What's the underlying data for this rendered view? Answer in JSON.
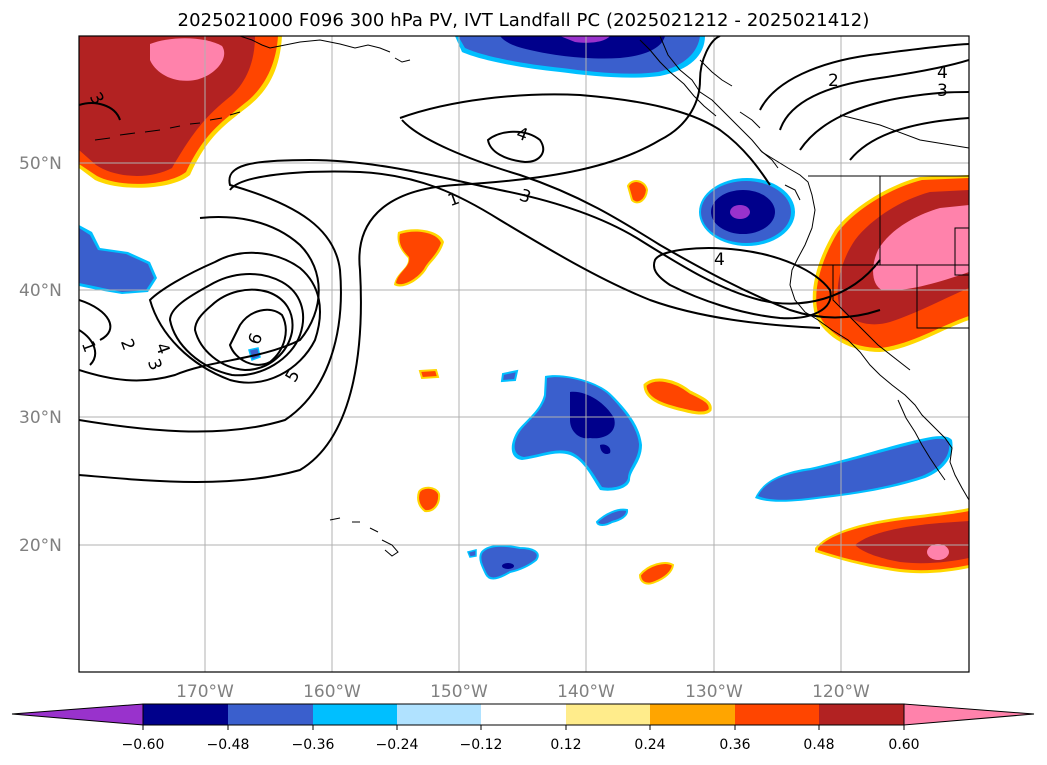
{
  "title": "2025021000 F096 300 hPa PV, IVT Landfall PC (2025021212 - 2025021412)",
  "lat_labels": [
    "50°N",
    "40°N",
    "30°N",
    "20°N"
  ],
  "lon_labels": [
    "170°W",
    "160°W",
    "150°W",
    "140°W",
    "130°W",
    "120°W"
  ],
  "colorbar": {
    "ticks": [
      "−0.60",
      "−0.48",
      "−0.36",
      "−0.24",
      "−0.12",
      "0.12",
      "0.24",
      "0.36",
      "0.48",
      "0.60"
    ],
    "colors": [
      "#9932cc",
      "#00008b",
      "#3a5fcd",
      "#00bfff",
      "#b0e2ff",
      "#ffffff",
      "#ffec8b",
      "#ffa500",
      "#ff4500",
      "#b22222",
      "#ff82ab"
    ]
  },
  "contour_labels": {
    "c1": "1",
    "c2": "2",
    "c3": "3",
    "c4": "4",
    "c5": "5",
    "c6": "6"
  }
}
